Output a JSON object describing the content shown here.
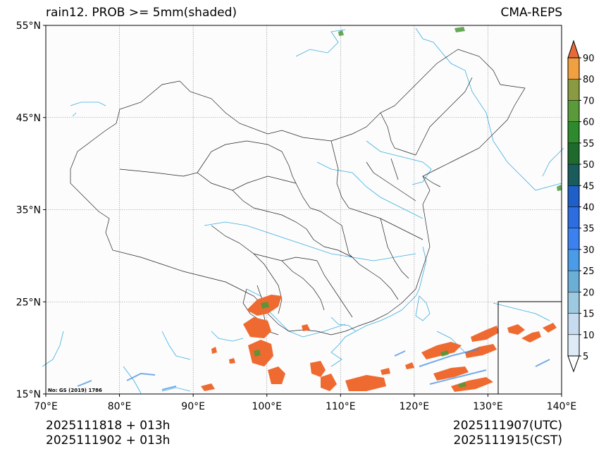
{
  "title": {
    "left": "rain12. PROB >= 5mm(shaded)",
    "right": "CMA-REPS"
  },
  "map": {
    "lat_labels": [
      "55°N",
      "45°N",
      "35°N",
      "25°N",
      "15°N"
    ],
    "lon_labels": [
      "70°E",
      "80°E",
      "90°E",
      "100°E",
      "110°E",
      "120°E",
      "130°E",
      "140°E"
    ],
    "lat_range": [
      15,
      55
    ],
    "lon_range": [
      70,
      140
    ],
    "credit": "No: GS (2019) 1786"
  },
  "colorbar": {
    "levels": [
      "5",
      "10",
      "15",
      "20",
      "25",
      "30",
      "35",
      "40",
      "45",
      "50",
      "55",
      "60",
      "70",
      "80",
      "90"
    ],
    "colors": [
      "#deebf7",
      "#c6dbef",
      "#9ecae1",
      "#6baed6",
      "#4a9be8",
      "#3b82f0",
      "#2c6ee0",
      "#1f5fc8",
      "#1a5c5c",
      "#1f6b2e",
      "#2d8a2d",
      "#5a9a3a",
      "#8a9a40",
      "#f0a040",
      "#f07830",
      "#e86a3a"
    ]
  },
  "footer": {
    "init_line1": "2025111818  +  013h",
    "init_line2": "2025111902  +  013h",
    "valid_utc": "2025111907(UTC)",
    "valid_cst": "2025111915(CST)"
  },
  "colors": {
    "border": "#000000",
    "river": "#3aaee0",
    "grid": "#888888",
    "precip_high": "#ee6a30",
    "precip_mid": "#4a9a3a",
    "precip_low": "#3a8ae0"
  }
}
